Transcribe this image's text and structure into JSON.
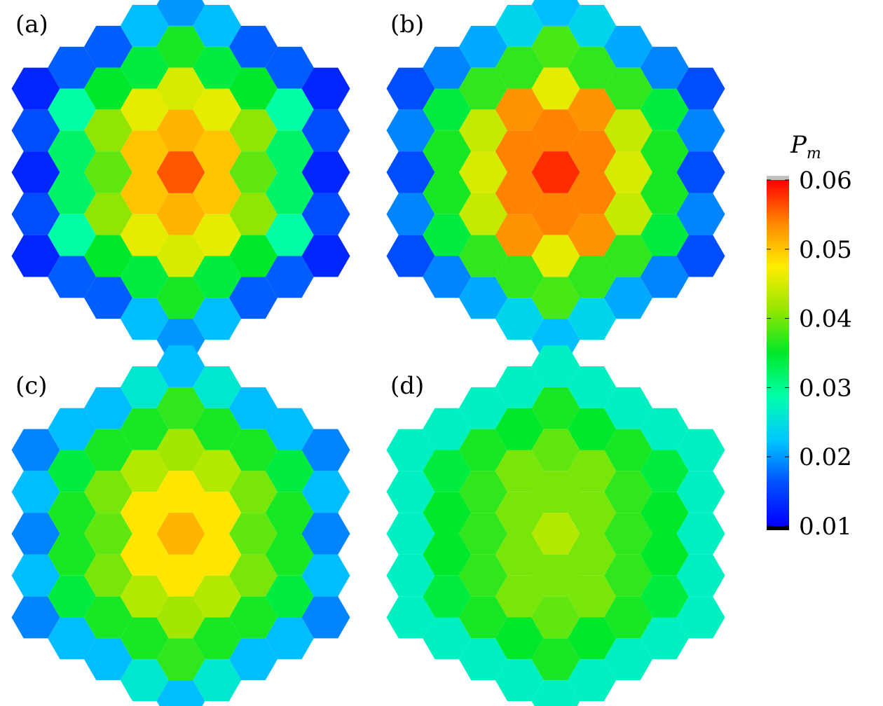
{
  "chart_data": [
    {
      "type": "heatmap",
      "panel_label": "(a)",
      "layout": "hexagonal grid, 9 columns (5-9 cells each), flat-top cells",
      "columns": [
        [
          0.013,
          0.016,
          0.013,
          0.016,
          0.013
        ],
        [
          0.017,
          0.029,
          0.032,
          0.032,
          0.029,
          0.017
        ],
        [
          0.017,
          0.035,
          0.041,
          0.039,
          0.041,
          0.035,
          0.017
        ],
        [
          0.022,
          0.034,
          0.046,
          0.05,
          0.05,
          0.046,
          0.034,
          0.022
        ],
        [
          0.02,
          0.036,
          0.045,
          0.051,
          0.056,
          0.051,
          0.045,
          0.036,
          0.02
        ],
        [
          0.022,
          0.034,
          0.046,
          0.05,
          0.05,
          0.046,
          0.034,
          0.022
        ],
        [
          0.017,
          0.035,
          0.041,
          0.039,
          0.041,
          0.035,
          0.017
        ],
        [
          0.017,
          0.029,
          0.032,
          0.032,
          0.029,
          0.017
        ],
        [
          0.013,
          0.016,
          0.013,
          0.016,
          0.013
        ]
      ]
    },
    {
      "type": "heatmap",
      "panel_label": "(b)",
      "layout": "hexagonal grid, 9 columns (5-9 cells each), flat-top cells",
      "columns": [
        [
          0.016,
          0.019,
          0.016,
          0.019,
          0.016
        ],
        [
          0.019,
          0.034,
          0.036,
          0.036,
          0.034,
          0.019
        ],
        [
          0.021,
          0.037,
          0.044,
          0.045,
          0.044,
          0.037,
          0.021
        ],
        [
          0.024,
          0.037,
          0.053,
          0.054,
          0.054,
          0.053,
          0.037,
          0.024
        ],
        [
          0.022,
          0.038,
          0.046,
          0.054,
          0.058,
          0.054,
          0.046,
          0.038,
          0.022
        ],
        [
          0.024,
          0.037,
          0.053,
          0.054,
          0.054,
          0.053,
          0.037,
          0.024
        ],
        [
          0.021,
          0.037,
          0.044,
          0.045,
          0.044,
          0.037,
          0.021
        ],
        [
          0.019,
          0.034,
          0.036,
          0.036,
          0.034,
          0.019
        ],
        [
          0.016,
          0.019,
          0.016,
          0.019,
          0.016
        ]
      ]
    },
    {
      "type": "heatmap",
      "panel_label": "(c)",
      "layout": "hexagonal grid, 9 columns (5-9 cells each), flat-top cells",
      "columns": [
        [
          0.019,
          0.022,
          0.019,
          0.022,
          0.019
        ],
        [
          0.022,
          0.034,
          0.036,
          0.036,
          0.034,
          0.022
        ],
        [
          0.022,
          0.036,
          0.04,
          0.039,
          0.04,
          0.036,
          0.022
        ],
        [
          0.026,
          0.036,
          0.043,
          0.048,
          0.048,
          0.043,
          0.036,
          0.026
        ],
        [
          0.022,
          0.037,
          0.042,
          0.048,
          0.051,
          0.048,
          0.042,
          0.037,
          0.022
        ],
        [
          0.026,
          0.036,
          0.043,
          0.048,
          0.048,
          0.043,
          0.036,
          0.026
        ],
        [
          0.022,
          0.036,
          0.04,
          0.039,
          0.04,
          0.036,
          0.022
        ],
        [
          0.022,
          0.034,
          0.036,
          0.036,
          0.034,
          0.022
        ],
        [
          0.019,
          0.022,
          0.019,
          0.022,
          0.019
        ]
      ]
    },
    {
      "type": "heatmap",
      "panel_label": "(d)",
      "layout": "hexagonal grid, 9 columns (5-9 cells each), flat-top cells",
      "columns": [
        [
          0.027,
          0.027,
          0.027,
          0.027,
          0.027
        ],
        [
          0.027,
          0.034,
          0.035,
          0.035,
          0.034,
          0.027
        ],
        [
          0.027,
          0.036,
          0.037,
          0.037,
          0.037,
          0.036,
          0.027
        ],
        [
          0.027,
          0.035,
          0.04,
          0.04,
          0.04,
          0.04,
          0.035,
          0.027
        ],
        [
          0.027,
          0.036,
          0.039,
          0.04,
          0.043,
          0.04,
          0.039,
          0.036,
          0.027
        ],
        [
          0.027,
          0.035,
          0.04,
          0.04,
          0.04,
          0.04,
          0.035,
          0.027
        ],
        [
          0.027,
          0.036,
          0.037,
          0.037,
          0.037,
          0.036,
          0.027
        ],
        [
          0.027,
          0.034,
          0.035,
          0.035,
          0.034,
          0.027
        ],
        [
          0.027,
          0.027,
          0.027,
          0.027,
          0.027
        ]
      ]
    }
  ],
  "colorbar": {
    "title": "P",
    "title_subscript": "m",
    "min": 0.01,
    "max": 0.06,
    "ticks": [
      "0.06",
      "0.05",
      "0.04",
      "0.03",
      "0.02",
      "0.01"
    ],
    "tick_values": [
      0.06,
      0.05,
      0.04,
      0.03,
      0.02,
      0.01
    ],
    "colormap": "jet",
    "over_color": "#c0c0c0",
    "under_color": "#000000"
  }
}
